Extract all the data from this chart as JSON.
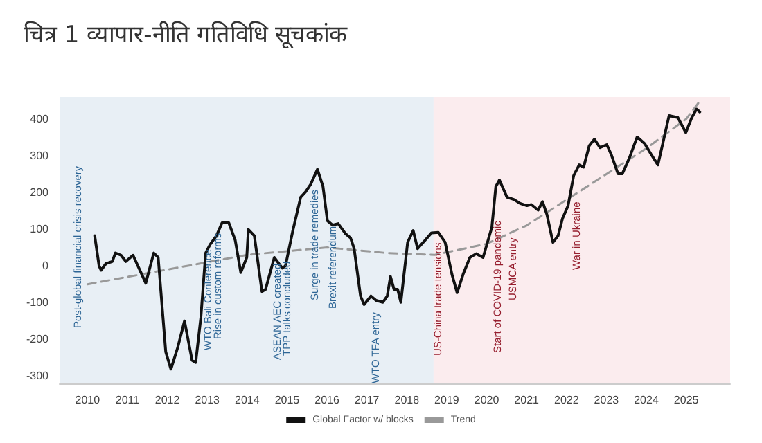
{
  "chart_data": {
    "type": "line",
    "title": "चित्र 1 व्यापार-नीति गतिविधि सूचकांक",
    "x": [
      2010.18,
      2010.29,
      2010.34,
      2010.46,
      2010.62,
      2010.7,
      2010.84,
      2010.96,
      2011.14,
      2011.46,
      2011.66,
      2011.77,
      2011.96,
      2012.09,
      2012.26,
      2012.43,
      2012.62,
      2012.71,
      2012.84,
      2012.96,
      2013.07,
      2013.23,
      2013.37,
      2013.54,
      2013.7,
      2013.84,
      2013.99,
      2014.03,
      2014.18,
      2014.37,
      2014.46,
      2014.68,
      2014.88,
      2014.96,
      2015.14,
      2015.34,
      2015.46,
      2015.59,
      2015.76,
      2015.9,
      2016.01,
      2016.14,
      2016.28,
      2016.46,
      2016.59,
      2016.68,
      2016.84,
      2016.93,
      2017.1,
      2017.23,
      2017.4,
      2017.51,
      2017.59,
      2017.68,
      2017.77,
      2017.85,
      2018.02,
      2018.16,
      2018.27,
      2018.46,
      2018.62,
      2018.79,
      2018.96,
      2019.13,
      2019.26,
      2019.41,
      2019.58,
      2019.74,
      2019.91,
      2020.02,
      2020.13,
      2020.23,
      2020.32,
      2020.51,
      2020.68,
      2020.84,
      2021.01,
      2021.12,
      2021.29,
      2021.4,
      2021.51,
      2021.66,
      2021.79,
      2021.9,
      2022.04,
      2022.18,
      2022.32,
      2022.43,
      2022.57,
      2022.7,
      2022.84,
      2023.01,
      2023.12,
      2023.29,
      2023.4,
      2023.57,
      2023.77,
      2023.96,
      2024.12,
      2024.29,
      2024.4,
      2024.57,
      2024.79,
      2024.99,
      2025.14,
      2025.26,
      2025.34
    ],
    "series": [
      {
        "name": "Global Factor w/ blocks",
        "color": "#111111",
        "line_style": "solid",
        "values": [
          82,
          0,
          -12,
          6,
          12,
          35,
          29,
          12,
          29,
          -47,
          35,
          23,
          -234,
          -281,
          -222,
          -150,
          -257,
          -263,
          -140,
          35,
          58,
          82,
          117,
          117,
          70,
          -18,
          23,
          99,
          82,
          -70,
          -64,
          23,
          -6,
          0,
          94,
          187,
          201,
          222,
          263,
          216,
          123,
          111,
          115,
          88,
          76,
          47,
          -82,
          -105,
          -82,
          -94,
          -99,
          -82,
          -29,
          -64,
          -64,
          -99,
          64,
          96,
          47,
          70,
          90,
          91,
          64,
          -23,
          -73,
          -23,
          23,
          33,
          23,
          64,
          105,
          216,
          234,
          187,
          181,
          170,
          164,
          167,
          152,
          175,
          140,
          64,
          82,
          129,
          164,
          246,
          275,
          269,
          327,
          345,
          322,
          330,
          304,
          251,
          251,
          292,
          351,
          333,
          304,
          275,
          327,
          409,
          404,
          363,
          404,
          427,
          419
        ]
      },
      {
        "name": "Trend",
        "color": "#999999",
        "line_style": "dashed",
        "x": [
          2010,
          2012,
          2014,
          2016,
          2017.5,
          2018.7,
          2020,
          2021,
          2022,
          2023,
          2024,
          2025,
          2025.35
        ],
        "values": [
          -50,
          -10,
          30,
          50,
          35,
          30,
          60,
          110,
          180,
          250,
          320,
          400,
          450
        ]
      }
    ],
    "xlim": [
      2009.3,
      2026.1
    ],
    "xticks": [
      2010,
      2011,
      2012,
      2013,
      2014,
      2015,
      2016,
      2017,
      2018,
      2019,
      2020,
      2021,
      2022,
      2023,
      2024,
      2025
    ],
    "ylim": [
      -320,
      460
    ],
    "yticks": [
      -300,
      -200,
      -100,
      0,
      100,
      200,
      300,
      400
    ],
    "legend": "bottom",
    "marker": "none",
    "bands": [
      {
        "axis": "x",
        "from": 2009.3,
        "to": 2018.67,
        "color": "#e8eff5"
      },
      {
        "axis": "x",
        "from": 2018.67,
        "to": 2026.1,
        "color": "#fbecee"
      }
    ],
    "annotations": [
      "Post-global financial crisis recovery",
      "WTO Bali Conference",
      "Rise in custom reforms",
      "ASEAN AEC created",
      "TPP talks concluded",
      "Surge in trade remedies",
      "Brexit referendum",
      "WTO TFA entry",
      "US-China trade tensions",
      "Start of COVID-19 pandemic",
      "USMCA entry",
      "War in Ukraine"
    ]
  }
}
